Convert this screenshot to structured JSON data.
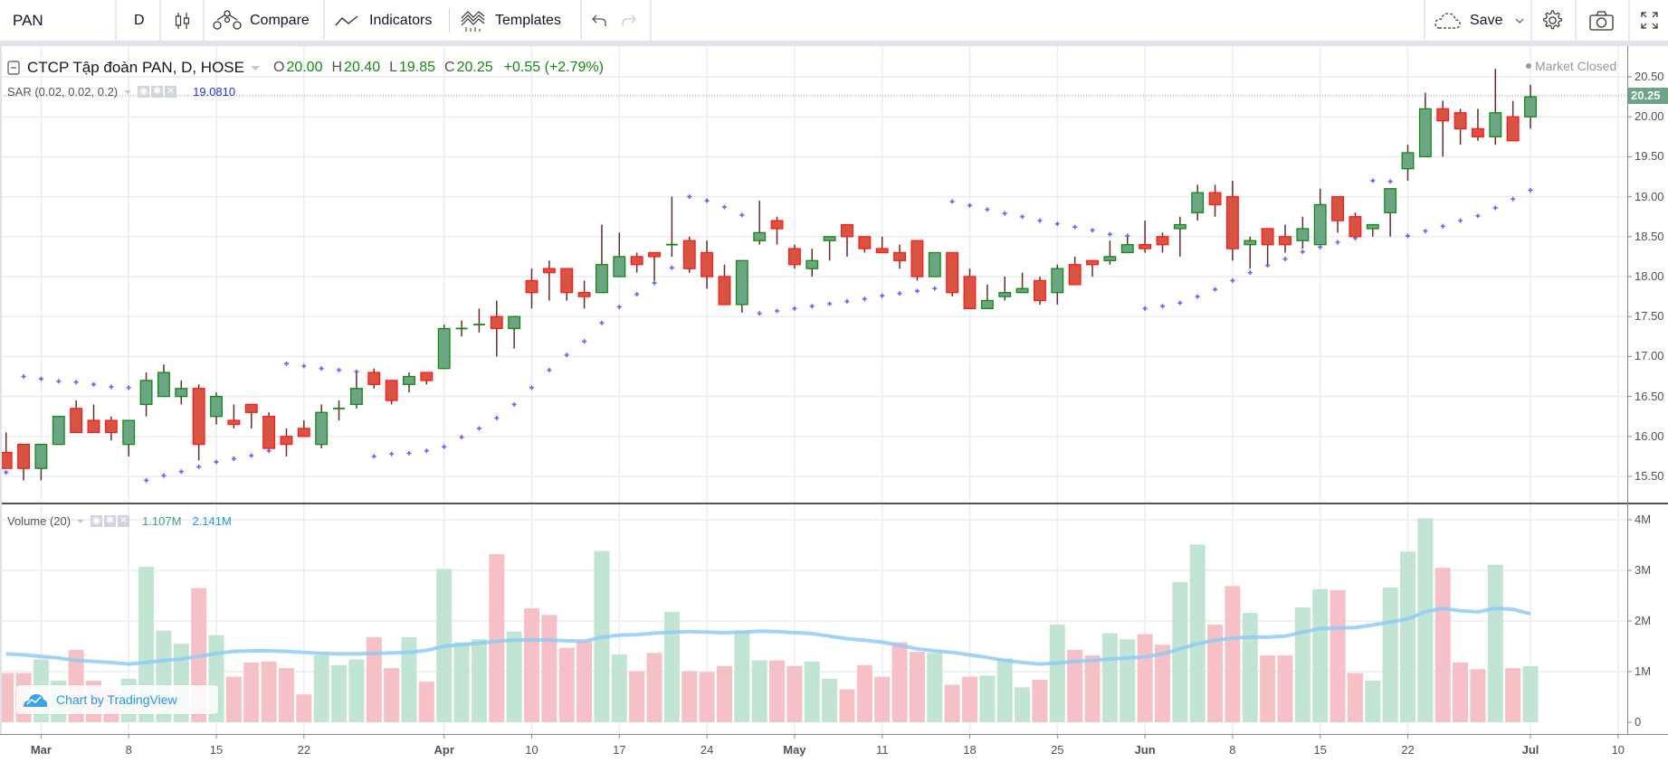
{
  "toolbar": {
    "symbol": "PAN",
    "interval": "D",
    "compare": "Compare",
    "indicators": "Indicators",
    "templates": "Templates",
    "save": "Save"
  },
  "legend": {
    "title": "CTCP Tập đoàn PAN, D, HOSE",
    "o_label": "O",
    "o": "20.00",
    "h_label": "H",
    "h": "20.40",
    "l_label": "L",
    "l": "19.85",
    "c_label": "C",
    "c": "20.25",
    "change": "+0.55 (+2.79%)",
    "market_status": "Market Closed",
    "sar_label": "SAR (0.02, 0.02, 0.2)",
    "sar_value": "19.0810",
    "volume_label": "Volume (20)",
    "volume_value": "1.107M",
    "volume_ma_value": "2.141M"
  },
  "watermark": "Chart by TradingView",
  "colors": {
    "up": "#6ba583",
    "up_border": "#138a13",
    "down": "#d75442",
    "down_border": "#ff1a1a",
    "wick": "#6b2a2a",
    "sar": "#3d3dff",
    "ma": "#8fcbf5",
    "vol_up": "#c2e5d3",
    "vol_down": "#f6c1c6",
    "grid": "#e9eef4"
  },
  "chart_data": {
    "type": "candlestick",
    "title": "CTCP Tập đoàn PAN, D, HOSE",
    "last_price_label": "20.25",
    "ylim": [
      15.2,
      20.8
    ],
    "yticks": [
      "15.50",
      "16.00",
      "16.50",
      "17.00",
      "17.50",
      "18.00",
      "18.50",
      "19.00",
      "19.50",
      "20.00",
      "20.50"
    ],
    "volume_ylim": [
      0,
      4.3
    ],
    "volume_ticks": [
      {
        "v": 0,
        "label": "0"
      },
      {
        "v": 1,
        "label": "1M"
      },
      {
        "v": 2,
        "label": "2M"
      },
      {
        "v": 3,
        "label": "3M"
      },
      {
        "v": 4,
        "label": "4M"
      }
    ],
    "xticks": [
      {
        "label": "Mar",
        "bar": 2,
        "bold": true
      },
      {
        "label": "8",
        "bar": 7
      },
      {
        "label": "15",
        "bar": 12
      },
      {
        "label": "22",
        "bar": 17
      },
      {
        "label": "Apr",
        "bar": 25,
        "bold": true
      },
      {
        "label": "10",
        "bar": 30
      },
      {
        "label": "17",
        "bar": 35
      },
      {
        "label": "24",
        "bar": 40
      },
      {
        "label": "May",
        "bar": 45,
        "bold": true
      },
      {
        "label": "11",
        "bar": 50
      },
      {
        "label": "18",
        "bar": 55
      },
      {
        "label": "25",
        "bar": 60
      },
      {
        "label": "Jun",
        "bar": 65,
        "bold": true
      },
      {
        "label": "8",
        "bar": 70
      },
      {
        "label": "15",
        "bar": 75
      },
      {
        "label": "22",
        "bar": 80
      },
      {
        "label": "Jul",
        "bar": 87,
        "bold": true
      },
      {
        "label": "10",
        "bar": 92
      }
    ],
    "ohlc": [
      [
        15.8,
        16.05,
        15.6,
        15.6
      ],
      [
        15.9,
        15.9,
        15.45,
        15.6
      ],
      [
        15.6,
        15.9,
        15.45,
        15.9
      ],
      [
        15.9,
        16.25,
        15.9,
        16.25
      ],
      [
        16.35,
        16.45,
        16.05,
        16.05
      ],
      [
        16.2,
        16.4,
        16.05,
        16.05
      ],
      [
        16.2,
        16.25,
        15.95,
        16.05
      ],
      [
        15.9,
        16.2,
        15.75,
        16.2
      ],
      [
        16.4,
        16.8,
        16.25,
        16.7
      ],
      [
        16.5,
        16.9,
        16.5,
        16.8
      ],
      [
        16.5,
        16.7,
        16.4,
        16.6
      ],
      [
        16.6,
        16.65,
        15.7,
        15.9
      ],
      [
        16.25,
        16.55,
        16.15,
        16.5
      ],
      [
        16.2,
        16.4,
        16.1,
        16.15
      ],
      [
        16.4,
        16.4,
        16.1,
        16.3
      ],
      [
        16.25,
        16.3,
        15.85,
        15.85
      ],
      [
        16.0,
        16.1,
        15.75,
        15.9
      ],
      [
        16.1,
        16.2,
        16.0,
        16.0
      ],
      [
        15.9,
        16.4,
        15.85,
        16.3
      ],
      [
        16.35,
        16.45,
        16.2,
        16.35
      ],
      [
        16.4,
        16.8,
        16.35,
        16.6
      ],
      [
        16.8,
        16.85,
        16.6,
        16.65
      ],
      [
        16.7,
        16.7,
        16.4,
        16.45
      ],
      [
        16.65,
        16.8,
        16.55,
        16.75
      ],
      [
        16.8,
        16.8,
        16.65,
        16.7
      ],
      [
        16.85,
        17.4,
        16.85,
        17.35
      ],
      [
        17.35,
        17.45,
        17.25,
        17.35
      ],
      [
        17.4,
        17.6,
        17.3,
        17.4
      ],
      [
        17.5,
        17.7,
        17.0,
        17.35
      ],
      [
        17.35,
        17.5,
        17.1,
        17.5
      ],
      [
        17.95,
        18.1,
        17.6,
        17.8
      ],
      [
        18.1,
        18.2,
        17.7,
        18.05
      ],
      [
        18.1,
        18.1,
        17.7,
        17.8
      ],
      [
        17.8,
        17.95,
        17.6,
        17.75
      ],
      [
        17.8,
        18.65,
        17.8,
        18.15
      ],
      [
        18.0,
        18.55,
        18.0,
        18.25
      ],
      [
        18.25,
        18.3,
        18.05,
        18.15
      ],
      [
        18.3,
        18.3,
        17.95,
        18.25
      ],
      [
        18.4,
        19.0,
        18.25,
        18.4
      ],
      [
        18.45,
        18.5,
        18.05,
        18.1
      ],
      [
        18.3,
        18.45,
        17.85,
        18.0
      ],
      [
        18.0,
        18.15,
        17.65,
        17.65
      ],
      [
        17.65,
        18.2,
        17.55,
        18.2
      ],
      [
        18.45,
        18.95,
        18.4,
        18.55
      ],
      [
        18.7,
        18.75,
        18.4,
        18.6
      ],
      [
        18.35,
        18.4,
        18.1,
        18.15
      ],
      [
        18.1,
        18.35,
        18.0,
        18.2
      ],
      [
        18.45,
        18.5,
        18.2,
        18.5
      ],
      [
        18.65,
        18.65,
        18.25,
        18.5
      ],
      [
        18.5,
        18.5,
        18.3,
        18.35
      ],
      [
        18.35,
        18.5,
        18.3,
        18.3
      ],
      [
        18.3,
        18.4,
        18.1,
        18.2
      ],
      [
        18.45,
        18.45,
        17.95,
        18.0
      ],
      [
        18.0,
        18.3,
        18.0,
        18.3
      ],
      [
        18.3,
        18.3,
        17.75,
        17.8
      ],
      [
        18.0,
        18.1,
        17.6,
        17.6
      ],
      [
        17.6,
        17.9,
        17.6,
        17.7
      ],
      [
        17.75,
        18.0,
        17.7,
        17.8
      ],
      [
        17.8,
        18.05,
        17.8,
        17.85
      ],
      [
        17.95,
        18.0,
        17.65,
        17.7
      ],
      [
        17.8,
        18.15,
        17.65,
        18.1
      ],
      [
        18.15,
        18.25,
        17.9,
        17.9
      ],
      [
        18.2,
        18.2,
        18.0,
        18.15
      ],
      [
        18.2,
        18.45,
        18.15,
        18.25
      ],
      [
        18.3,
        18.5,
        18.3,
        18.4
      ],
      [
        18.4,
        18.7,
        18.3,
        18.35
      ],
      [
        18.5,
        18.55,
        18.3,
        18.4
      ],
      [
        18.6,
        18.75,
        18.25,
        18.65
      ],
      [
        18.8,
        19.15,
        18.7,
        19.05
      ],
      [
        19.05,
        19.15,
        18.75,
        18.9
      ],
      [
        19.0,
        19.2,
        18.2,
        18.35
      ],
      [
        18.4,
        18.5,
        18.1,
        18.45
      ],
      [
        18.6,
        18.6,
        18.15,
        18.4
      ],
      [
        18.5,
        18.65,
        18.3,
        18.4
      ],
      [
        18.45,
        18.75,
        18.35,
        18.6
      ],
      [
        18.4,
        19.1,
        18.4,
        18.9
      ],
      [
        19.0,
        19.0,
        18.55,
        18.7
      ],
      [
        18.75,
        18.8,
        18.5,
        18.5
      ],
      [
        18.6,
        18.65,
        18.5,
        18.65
      ],
      [
        18.8,
        19.1,
        18.5,
        19.1
      ],
      [
        19.35,
        19.65,
        19.2,
        19.55
      ],
      [
        19.5,
        20.3,
        19.5,
        20.1
      ],
      [
        20.1,
        20.2,
        19.5,
        19.95
      ],
      [
        20.05,
        20.1,
        19.65,
        19.85
      ],
      [
        19.85,
        20.1,
        19.7,
        19.75
      ],
      [
        19.75,
        20.6,
        19.65,
        20.05
      ],
      [
        20.0,
        20.2,
        19.7,
        19.7
      ],
      [
        20.0,
        20.4,
        19.85,
        20.25
      ]
    ],
    "sar": [
      15.55,
      16.75,
      16.72,
      16.69,
      16.68,
      16.65,
      16.62,
      16.61,
      15.45,
      15.51,
      15.56,
      15.62,
      15.68,
      15.72,
      15.76,
      15.82,
      16.91,
      16.88,
      16.85,
      16.83,
      16.81,
      15.75,
      15.78,
      15.79,
      15.82,
      15.87,
      15.99,
      16.1,
      16.23,
      16.4,
      16.61,
      16.83,
      17.02,
      17.19,
      17.42,
      17.62,
      17.78,
      17.92,
      18.11,
      19.0,
      18.95,
      18.87,
      18.77,
      17.54,
      17.57,
      17.6,
      17.63,
      17.66,
      17.69,
      17.72,
      17.76,
      17.79,
      17.82,
      17.85,
      18.94,
      18.89,
      18.84,
      18.79,
      18.75,
      18.7,
      18.66,
      18.62,
      18.58,
      18.53,
      18.51,
      17.6,
      17.63,
      17.67,
      17.75,
      17.84,
      17.95,
      18.05,
      18.14,
      18.22,
      18.31,
      18.37,
      18.43,
      18.48,
      19.2,
      19.19,
      18.51,
      18.57,
      18.63,
      18.7,
      18.76,
      18.86,
      18.97,
      19.081
    ],
    "volume_millions": [
      0.97,
      0.97,
      1.24,
      0.82,
      1.43,
      0.82,
      0.67,
      0.86,
      3.07,
      1.81,
      1.55,
      2.65,
      1.72,
      0.9,
      1.18,
      1.2,
      1.07,
      0.55,
      1.32,
      1.13,
      1.24,
      1.68,
      1.07,
      1.68,
      0.8,
      3.03,
      1.58,
      1.64,
      3.32,
      1.79,
      2.25,
      2.12,
      1.47,
      1.6,
      3.38,
      1.34,
      1.01,
      1.37,
      2.18,
      1.01,
      0.99,
      1.11,
      1.81,
      1.22,
      1.22,
      1.11,
      1.2,
      0.86,
      0.65,
      1.13,
      0.9,
      1.58,
      1.39,
      1.37,
      0.74,
      0.9,
      0.92,
      1.26,
      0.69,
      0.84,
      1.93,
      1.43,
      1.32,
      1.76,
      1.64,
      1.74,
      1.53,
      2.77,
      3.51,
      1.93,
      2.69,
      2.16,
      1.32,
      1.32,
      2.27,
      2.63,
      2.61,
      0.97,
      0.82,
      2.66,
      3.37,
      4.03,
      3.05,
      1.18,
      1.05,
      3.11,
      1.07,
      1.107
    ],
    "volume_ma20_millions": [
      1.35,
      1.33,
      1.3,
      1.27,
      1.22,
      1.2,
      1.18,
      1.15,
      1.18,
      1.22,
      1.25,
      1.3,
      1.36,
      1.4,
      1.41,
      1.41,
      1.4,
      1.38,
      1.36,
      1.35,
      1.35,
      1.36,
      1.37,
      1.38,
      1.42,
      1.5,
      1.53,
      1.56,
      1.6,
      1.62,
      1.63,
      1.62,
      1.61,
      1.6,
      1.68,
      1.72,
      1.73,
      1.76,
      1.78,
      1.79,
      1.78,
      1.77,
      1.78,
      1.8,
      1.79,
      1.77,
      1.75,
      1.7,
      1.65,
      1.62,
      1.58,
      1.52,
      1.45,
      1.41,
      1.38,
      1.33,
      1.28,
      1.22,
      1.18,
      1.15,
      1.17,
      1.2,
      1.22,
      1.25,
      1.27,
      1.29,
      1.35,
      1.45,
      1.55,
      1.62,
      1.66,
      1.68,
      1.68,
      1.7,
      1.78,
      1.85,
      1.86,
      1.87,
      1.92,
      1.98,
      2.04,
      2.18,
      2.25,
      2.2,
      2.18,
      2.25,
      2.23,
      2.141
    ]
  }
}
